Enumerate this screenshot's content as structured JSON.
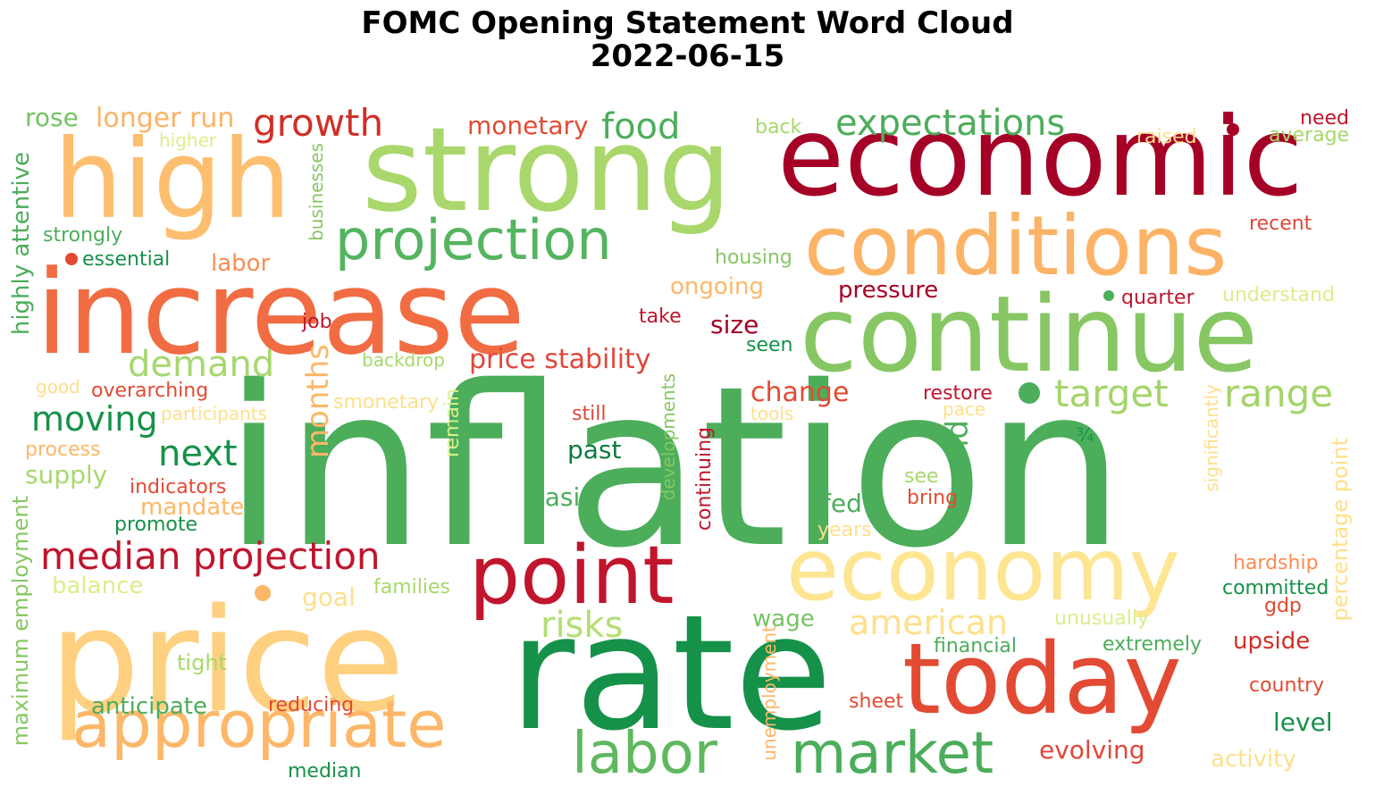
{
  "title": {
    "line1": "FOMC Opening Statement Word Cloud",
    "line2": "2022-06-15"
  },
  "words": [
    {
      "text": "inflation",
      "color": "#4cad5b"
    },
    {
      "text": "rate",
      "color": "#169149"
    },
    {
      "text": "price",
      "color": "#fed07f"
    },
    {
      "text": "increase",
      "color": "#f16c42"
    },
    {
      "text": "strong",
      "color": "#a9d76b"
    },
    {
      "text": "economic",
      "color": "#a50026"
    },
    {
      "text": "high",
      "color": "#fdbf6f"
    },
    {
      "text": "continue",
      "color": "#86c763"
    },
    {
      "text": "conditions",
      "color": "#fdb365"
    },
    {
      "text": "economy",
      "color": "#fee592"
    },
    {
      "text": "today",
      "color": "#e34a33"
    },
    {
      "text": "point",
      "color": "#c0152d"
    },
    {
      "text": "appropriate",
      "color": "#fdb768"
    },
    {
      "text": "projection",
      "color": "#54b45f"
    },
    {
      "text": "labor",
      "color": "#5fb85f"
    },
    {
      "text": "market",
      "color": "#4cad5b"
    },
    {
      "text": "growth",
      "color": "#d02f27"
    },
    {
      "text": "expectations",
      "color": "#4cad5b"
    },
    {
      "text": "median projection",
      "color": "#c0152d"
    },
    {
      "text": "target",
      "color": "#a4d46a"
    },
    {
      "text": "range",
      "color": "#a4d46a"
    },
    {
      "text": "food",
      "color": "#4cad5b"
    },
    {
      "text": "demand",
      "color": "#a6d86e"
    },
    {
      "text": "moving",
      "color": "#169149"
    },
    {
      "text": "next",
      "color": "#169149"
    },
    {
      "text": "price stability",
      "color": "#e0473a"
    },
    {
      "text": "american",
      "color": "#fee08b"
    },
    {
      "text": "risks",
      "color": "#b3df72"
    },
    {
      "text": "months",
      "color": "#fdb768"
    },
    {
      "text": "monetary",
      "color": "#e34a33"
    },
    {
      "text": "longer run",
      "color": "#fdb365"
    },
    {
      "text": "rose",
      "color": "#74c264"
    },
    {
      "text": "change",
      "color": "#e34a33"
    },
    {
      "text": "pressure",
      "color": "#a50026"
    },
    {
      "text": "size",
      "color": "#a50026"
    },
    {
      "text": "past",
      "color": "#0e7a3f"
    },
    {
      "text": "basis",
      "color": "#4cad5b"
    },
    {
      "text": "fed",
      "color": "#4cad5b"
    },
    {
      "text": "end",
      "color": "#4cad5b"
    },
    {
      "text": "wage",
      "color": "#74c264"
    },
    {
      "text": "level",
      "color": "#169149"
    },
    {
      "text": "evolving",
      "color": "#e0473a"
    },
    {
      "text": "activity",
      "color": "#fee08b"
    },
    {
      "text": "upside",
      "color": "#d02f27"
    },
    {
      "text": "anticipate",
      "color": "#4cad5b"
    },
    {
      "text": "supply",
      "color": "#a6d96a"
    },
    {
      "text": "mandate",
      "color": "#fdb768"
    },
    {
      "text": "labor",
      "color": "#f88d52"
    },
    {
      "text": "ongoing",
      "color": "#fdb768"
    },
    {
      "text": "highly attentive",
      "color": "#4cad5b"
    },
    {
      "text": "maximum employment",
      "color": "#86c763"
    },
    {
      "text": "percentage point",
      "color": "#fee08b"
    },
    {
      "text": "remain",
      "color": "#d9ef8b"
    },
    {
      "text": "unemployment",
      "color": "#fdb768"
    },
    {
      "text": "continuing",
      "color": "#c0152d"
    },
    {
      "text": "developments",
      "color": "#86c763"
    },
    {
      "text": "businesses",
      "color": "#86c763"
    },
    {
      "text": "significantly",
      "color": "#fee08b"
    },
    {
      "text": "strongly",
      "color": "#4cad5b"
    },
    {
      "text": "essential",
      "color": "#169149"
    },
    {
      "text": "housing",
      "color": "#86c763"
    },
    {
      "text": "higher",
      "color": "#d9ef8b"
    },
    {
      "text": "back",
      "color": "#a6d96a"
    },
    {
      "text": "raised",
      "color": "#fee08b"
    },
    {
      "text": "need",
      "color": "#c0152d"
    },
    {
      "text": "average",
      "color": "#a6d96a"
    },
    {
      "text": "recent",
      "color": "#e0473a"
    },
    {
      "text": "quarter",
      "color": "#c0152d"
    },
    {
      "text": "understand",
      "color": "#d9ef8b"
    },
    {
      "text": "take",
      "color": "#c0152d"
    },
    {
      "text": "seen",
      "color": "#169149"
    },
    {
      "text": "job",
      "color": "#c0152d"
    },
    {
      "text": "backdrop",
      "color": "#a6d96a"
    },
    {
      "text": "good",
      "color": "#fee08b"
    },
    {
      "text": "overarching",
      "color": "#e34a33"
    },
    {
      "text": "participants",
      "color": "#fee08b"
    },
    {
      "text": "smonetary",
      "color": "#fee08b"
    },
    {
      "text": "still",
      "color": "#e0473a"
    },
    {
      "text": "restore",
      "color": "#c0152d"
    },
    {
      "text": "tools",
      "color": "#fee08b"
    },
    {
      "text": "pace",
      "color": "#fee08b"
    },
    {
      "text": "¾",
      "color": "#169149"
    },
    {
      "text": "process",
      "color": "#fdb768"
    },
    {
      "text": "indicators",
      "color": "#e34a33"
    },
    {
      "text": "promote",
      "color": "#169149"
    },
    {
      "text": "see",
      "color": "#a6d96a"
    },
    {
      "text": "bring",
      "color": "#e34a33"
    },
    {
      "text": "years",
      "color": "#fee08b"
    },
    {
      "text": "balance",
      "color": "#d9ef8b"
    },
    {
      "text": "goal",
      "color": "#fee08b"
    },
    {
      "text": "families",
      "color": "#a6d96a"
    },
    {
      "text": "hardship",
      "color": "#f88d52"
    },
    {
      "text": "committed",
      "color": "#169149"
    },
    {
      "text": "gdp",
      "color": "#e34a33"
    },
    {
      "text": "unusually",
      "color": "#d9ef8b"
    },
    {
      "text": "financial",
      "color": "#4cad5b"
    },
    {
      "text": "extremely",
      "color": "#4cad5b"
    },
    {
      "text": "tight",
      "color": "#a6d96a"
    },
    {
      "text": "reducing",
      "color": "#e34a33"
    },
    {
      "text": "sheet",
      "color": "#e34a33"
    },
    {
      "text": "country",
      "color": "#e34a33"
    },
    {
      "text": "median",
      "color": "#169149"
    }
  ]
}
